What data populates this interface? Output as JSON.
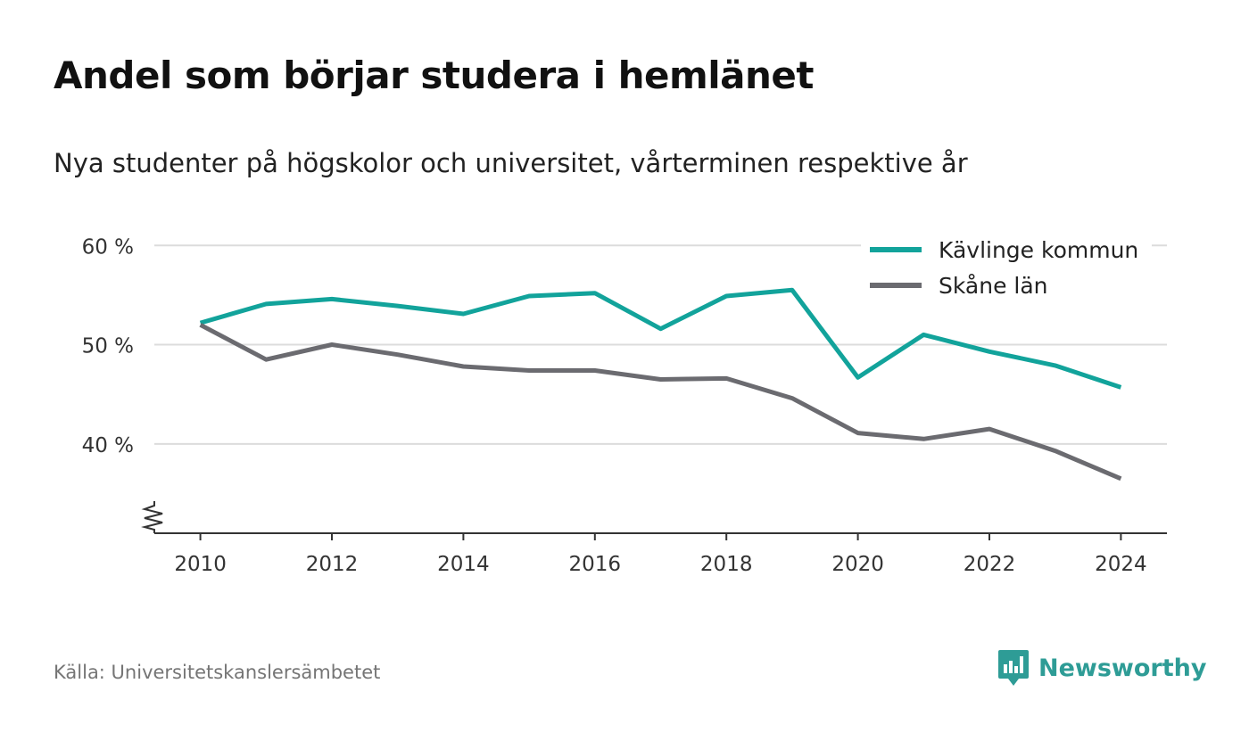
{
  "title": "Andel som börjar studera i hemlänet",
  "subtitle": "Nya studenter på högskolor och universitet, vårterminen respektive år",
  "source": "Källa: Universitetskanslersämbetet",
  "brand": {
    "name": "Newsworthy",
    "icon": "newsworthy-logo-icon",
    "color": "#2e9c96"
  },
  "chart_data": {
    "type": "line",
    "x": [
      2010,
      2011,
      2012,
      2013,
      2014,
      2015,
      2016,
      2017,
      2018,
      2019,
      2020,
      2021,
      2022,
      2023,
      2024
    ],
    "series": [
      {
        "name": "Kävlinge kommun",
        "color": "#12a39b",
        "values": [
          52.2,
          54.1,
          54.6,
          53.9,
          53.1,
          54.9,
          55.2,
          51.6,
          54.9,
          55.5,
          46.7,
          51.0,
          49.3,
          47.9,
          45.7
        ]
      },
      {
        "name": "Skåne län",
        "color": "#6b6b70",
        "values": [
          52.0,
          48.5,
          50.0,
          49.0,
          47.8,
          47.4,
          47.4,
          46.5,
          46.6,
          44.6,
          41.1,
          40.5,
          41.5,
          39.3,
          36.5
        ]
      }
    ],
    "yticks": [
      40,
      50,
      60
    ],
    "ytick_labels": [
      "40 %",
      "50 %",
      "60 %"
    ],
    "xticks": [
      2010,
      2012,
      2014,
      2016,
      2018,
      2020,
      2022,
      2024
    ],
    "xtick_labels": [
      "2010",
      "2012",
      "2014",
      "2016",
      "2018",
      "2020",
      "2022",
      "2024"
    ],
    "ylim": [
      31,
      62
    ],
    "xlim": [
      2009.3,
      2024.7
    ],
    "grid": true,
    "legend_position": "top-right",
    "xlabel": "",
    "ylabel": ""
  }
}
